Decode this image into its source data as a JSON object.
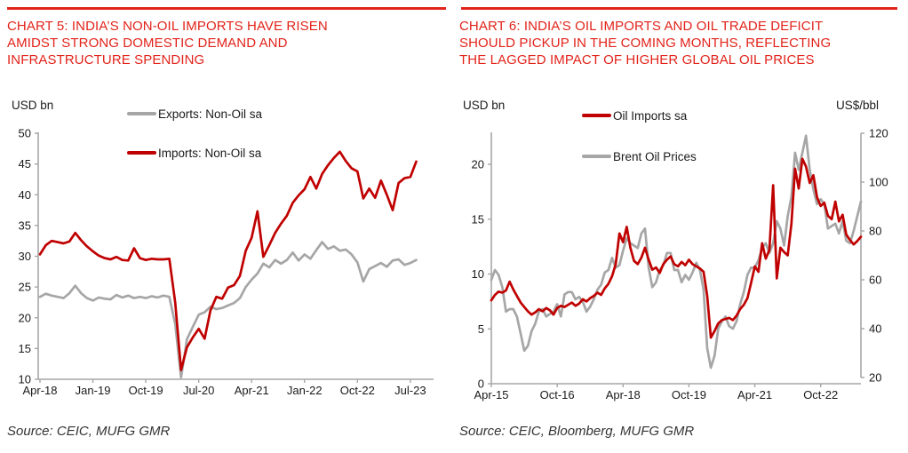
{
  "page": {
    "background": "#FFFFFF",
    "accent_red_color": "#E2231A",
    "series_red_color": "#C00000",
    "series_gray_color": "#A6A6A6",
    "axis_color": "#A6A6A6"
  },
  "left_panel": {
    "title_lines": [
      "CHART 5: INDIA’S NON-OIL IMPORTS HAVE RISEN",
      "AMIDST STRONG DOMESTIC DEMAND AND",
      "INFRASTRUCTURE SPENDING"
    ],
    "y_axis_unit": "USD bn",
    "legend": [
      {
        "label": "Exports: Non-Oil sa",
        "color": "#A6A6A6"
      },
      {
        "label": "Imports: Non-Oil sa",
        "color": "#C00000"
      }
    ],
    "source": "Source: CEIC, MUFG GMR"
  },
  "right_panel": {
    "title_lines": [
      "CHART 6: INDIA’S OIL IMPORTS AND OIL TRADE DEFICIT",
      "SHOULD PICKUP IN THE COMING MONTHS, REFLECTING",
      "THE LAGGED IMPACT OF HIGHER GLOBAL OIL PRICES"
    ],
    "y_axis_unit_left": "USD bn",
    "y_axis_unit_right": "US$/bbl",
    "legend": [
      {
        "label": "Oil Imports sa",
        "color": "#C00000"
      },
      {
        "label": "Brent Oil Prices",
        "color": "#A6A6A6"
      }
    ],
    "source": "Source: CEIC, Bloomberg, MUFG GMR"
  },
  "chart_data": [
    {
      "type": "line",
      "title": "CHART 5: INDIA'S NON-OIL IMPORTS HAVE RISEN AMIDST STRONG DOMESTIC DEMAND AND INFRASTRUCTURE SPENDING",
      "ylabel": "USD bn",
      "ylim": [
        10,
        50
      ],
      "yticks": [
        10,
        15,
        20,
        25,
        30,
        35,
        40,
        45,
        50
      ],
      "grid": false,
      "legend_position": "top-inside",
      "frequency": "monthly",
      "x_range": [
        "Apr-2018",
        "Aug-2023"
      ],
      "x_tick_labels": [
        "Apr-18",
        "Jan-19",
        "Oct-19",
        "Jul-20",
        "Apr-21",
        "Jan-22",
        "Oct-22",
        "Jul-23"
      ],
      "x_tick_month_index": [
        0,
        9,
        18,
        27,
        36,
        45,
        54,
        63
      ],
      "series": [
        {
          "name": "Exports: Non-Oil sa",
          "color": "#A6A6A6",
          "axis": "left",
          "values": [
            23.4,
            23.9,
            23.6,
            23.4,
            23.2,
            24.0,
            25.2,
            24.0,
            23.2,
            22.8,
            23.3,
            23.1,
            23.0,
            23.7,
            23.3,
            23.6,
            23.2,
            23.4,
            23.2,
            23.5,
            23.3,
            23.6,
            23.4,
            19.0,
            10.3,
            16.5,
            18.5,
            20.5,
            20.9,
            21.8,
            21.4,
            21.6,
            22.0,
            22.4,
            23.2,
            25.0,
            26.2,
            27.2,
            28.8,
            28.2,
            29.4,
            28.8,
            29.4,
            30.6,
            29.3,
            30.3,
            29.6,
            31.0,
            32.3,
            31.2,
            31.6,
            30.9,
            31.1,
            30.3,
            29.0,
            25.9,
            27.9,
            28.4,
            28.9,
            28.3,
            29.3,
            29.5,
            28.6,
            28.9,
            29.4
          ]
        },
        {
          "name": "Imports: Non-Oil sa",
          "color": "#C00000",
          "axis": "left",
          "values": [
            30.3,
            31.8,
            32.5,
            32.3,
            32.1,
            32.4,
            33.8,
            32.6,
            31.6,
            30.8,
            30.1,
            29.7,
            29.5,
            29.9,
            29.4,
            29.3,
            31.3,
            29.7,
            29.4,
            29.6,
            29.5,
            29.5,
            29.6,
            22.5,
            11.5,
            15.2,
            16.8,
            18.2,
            16.6,
            21.2,
            23.4,
            23.1,
            24.9,
            25.3,
            26.8,
            30.9,
            33.0,
            37.3,
            29.9,
            31.8,
            33.8,
            35.3,
            36.6,
            38.7,
            39.9,
            40.9,
            42.9,
            41.0,
            43.4,
            44.8,
            46.0,
            47.0,
            45.5,
            44.3,
            43.8,
            39.4,
            41.0,
            39.5,
            42.3,
            40.0,
            37.5,
            41.9,
            42.7,
            42.9,
            45.4
          ]
        }
      ],
      "source": "Source: CEIC, MUFG GMR"
    },
    {
      "type": "line",
      "title": "CHART 6: INDIA'S OIL IMPORTS AND OIL TRADE DEFICIT SHOULD PICKUP IN THE COMING MONTHS, REFLECTING THE LAGGED IMPACT OF HIGHER GLOBAL OIL PRICES",
      "ylabel_left": "USD bn",
      "ylabel_right": "US$/bbl",
      "ylim_left": [
        0,
        20
      ],
      "yticks_left": [
        0,
        5,
        10,
        15,
        20
      ],
      "ylim_right": [
        20,
        120
      ],
      "yticks_right": [
        20,
        40,
        60,
        80,
        100,
        120
      ],
      "grid": false,
      "legend_position": "top-inside",
      "frequency": "monthly",
      "x_range": [
        "Apr-2015",
        "Sep-2023"
      ],
      "x_tick_labels": [
        "Apr-15",
        "Oct-16",
        "Apr-18",
        "Oct-19",
        "Apr-21",
        "Oct-22"
      ],
      "x_tick_month_index": [
        0,
        18,
        36,
        54,
        72,
        90
      ],
      "series": [
        {
          "name": "Oil Imports sa",
          "color": "#C00000",
          "axis": "left",
          "values": [
            7.6,
            8.1,
            8.4,
            8.3,
            8.5,
            9.3,
            8.6,
            8.0,
            7.4,
            7.0,
            6.6,
            6.3,
            6.5,
            6.8,
            6.6,
            6.9,
            6.7,
            6.3,
            6.9,
            7.1,
            7.0,
            7.2,
            7.4,
            7.1,
            7.3,
            7.7,
            7.5,
            7.8,
            8.0,
            8.3,
            8.1,
            8.7,
            9.1,
            9.8,
            10.9,
            13.7,
            12.9,
            14.3,
            12.4,
            11.2,
            10.9,
            11.5,
            12.4,
            11.3,
            10.4,
            10.6,
            10.1,
            10.9,
            11.3,
            11.6,
            10.9,
            10.7,
            11.1,
            10.8,
            11.3,
            10.9,
            10.7,
            10.5,
            10.2,
            8.0,
            4.2,
            4.8,
            5.5,
            5.8,
            5.9,
            6.0,
            5.8,
            6.2,
            6.8,
            7.2,
            7.8,
            9.2,
            10.7,
            10.2,
            12.8,
            11.4,
            12.2,
            18.1,
            9.6,
            12.4,
            12.0,
            11.7,
            14.6,
            19.6,
            17.8,
            20.5,
            19.8,
            18.3,
            19.0,
            17.0,
            16.2,
            16.5,
            15.3,
            15.0,
            16.6,
            14.8,
            15.4,
            13.6,
            13.1,
            12.7,
            13.0,
            13.4
          ]
        },
        {
          "name": "Brent Oil Prices",
          "color": "#A6A6A6",
          "axis": "right",
          "values": [
            60,
            64,
            62,
            57,
            47,
            48,
            48,
            45,
            38,
            31,
            33,
            39,
            42,
            47,
            48,
            45,
            46,
            47,
            50,
            45,
            54,
            55,
            55,
            52,
            53,
            51,
            47,
            49,
            52,
            56,
            58,
            63,
            64,
            69,
            65,
            66,
            72,
            77,
            75,
            74,
            73,
            79,
            81,
            65,
            57,
            59,
            64,
            66,
            71,
            71,
            64,
            64,
            59,
            62,
            60,
            63,
            67,
            64,
            56,
            32,
            24,
            29,
            40,
            43,
            45,
            41,
            40,
            43,
            50,
            55,
            62,
            65,
            65,
            68,
            73,
            75,
            71,
            75,
            84,
            81,
            74,
            86,
            94,
            112,
            105,
            112,
            119,
            105,
            97,
            91,
            93,
            91,
            81,
            82,
            83,
            79,
            84,
            76,
            75,
            80,
            86,
            92
          ]
        }
      ],
      "source": "Source: CEIC, Bloomberg, MUFG GMR"
    }
  ]
}
